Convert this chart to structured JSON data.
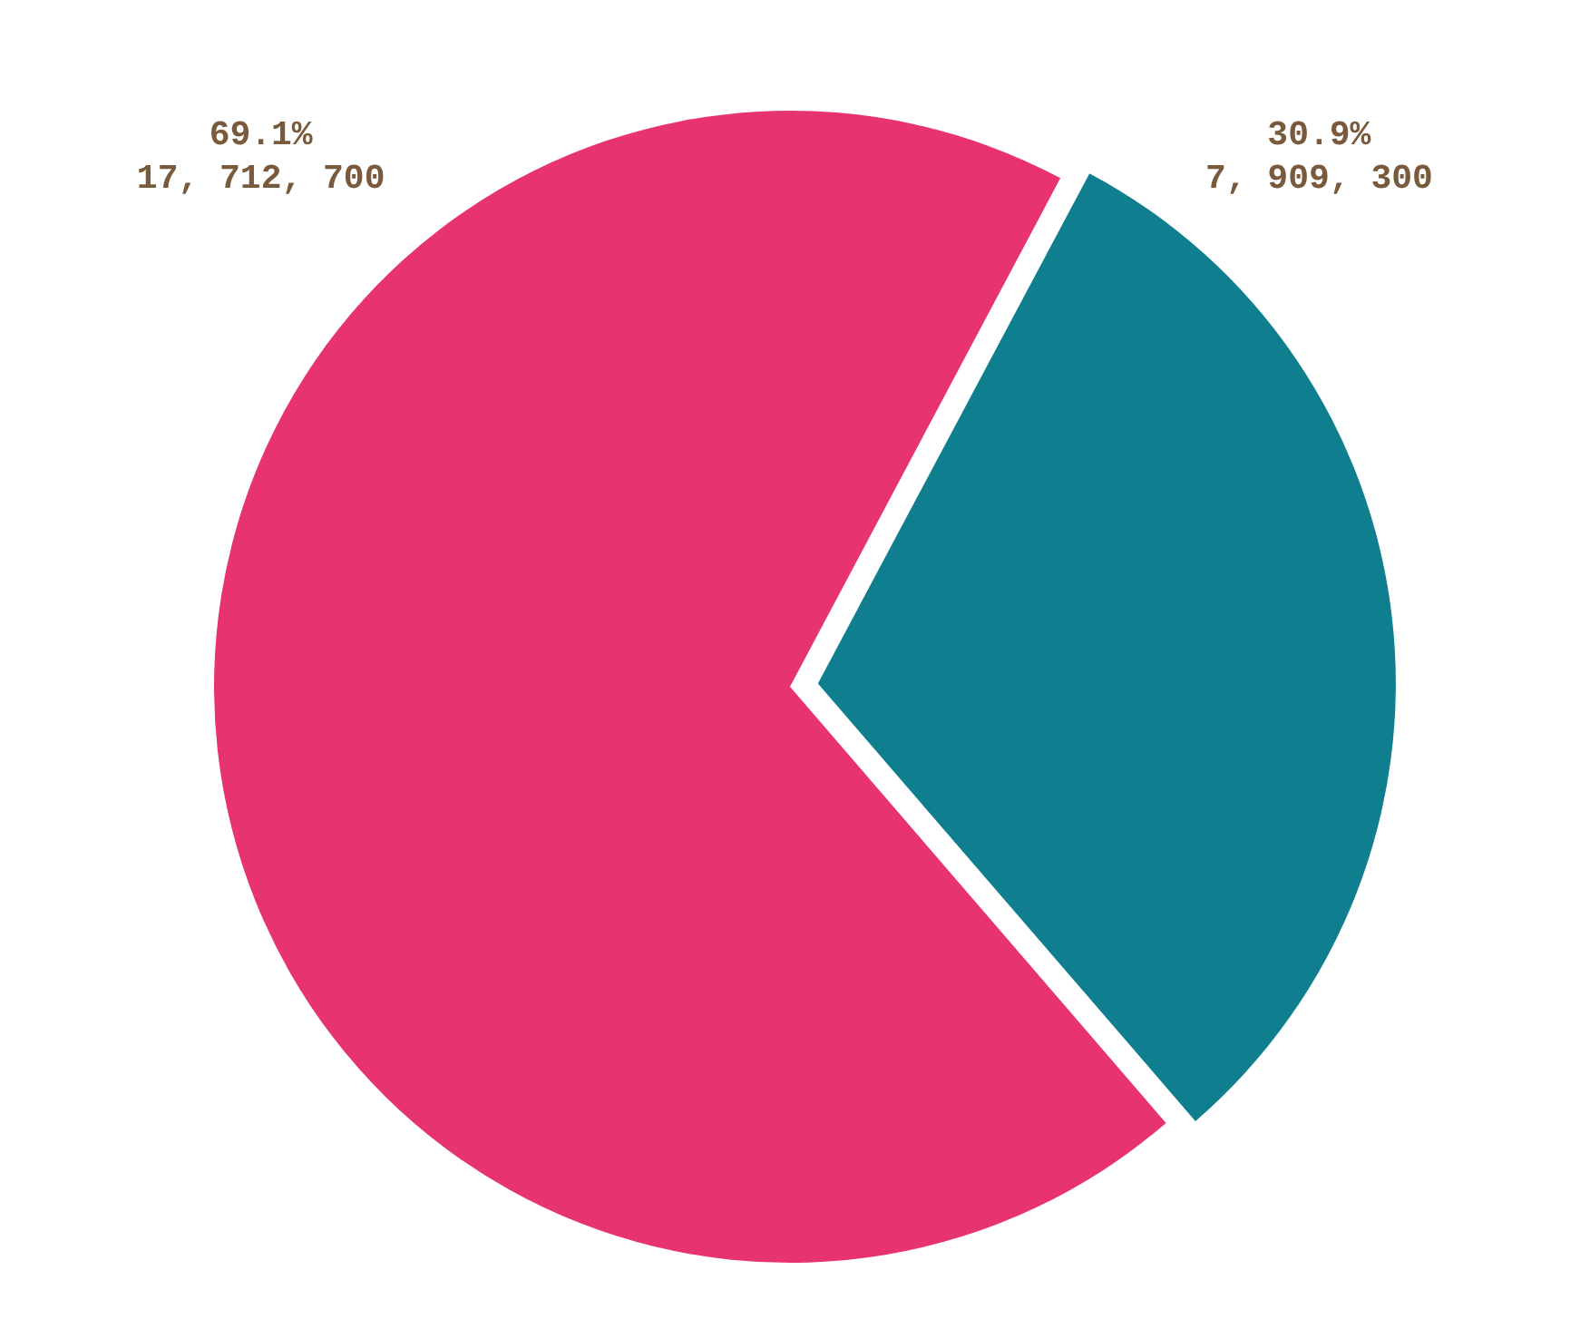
{
  "chart_data": {
    "type": "pie",
    "categories": [
      null,
      null
    ],
    "values": [
      69.1,
      30.9
    ],
    "colors": [
      "#e8346e",
      "#0f7f8f"
    ],
    "value_labels": [
      "69.1%\n17, 712, 700",
      "30.9%\n7, 909, 300"
    ],
    "legend": false
  }
}
